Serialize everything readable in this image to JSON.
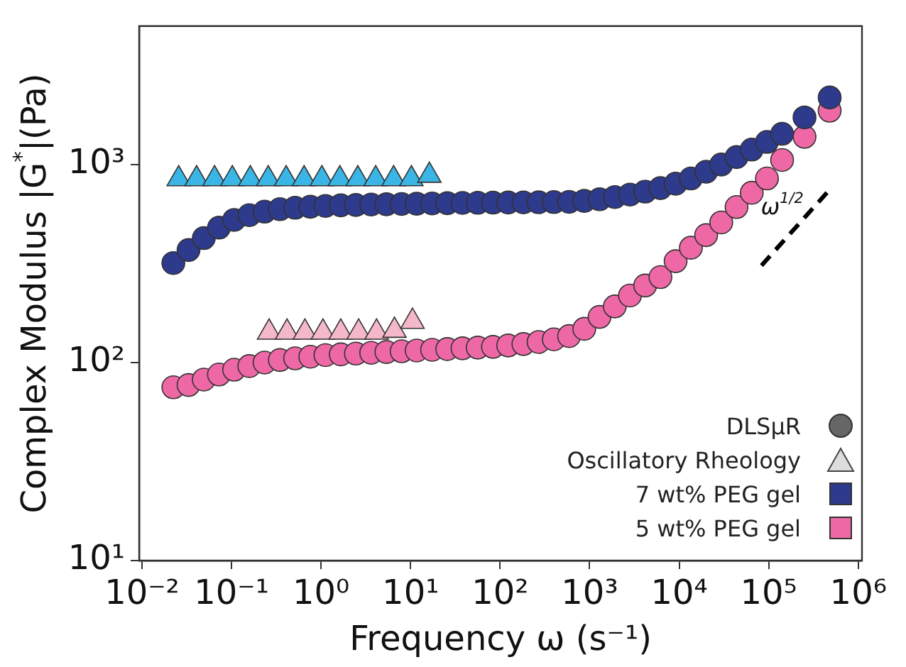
{
  "chart_data": {
    "type": "scatter",
    "xlabel": "Frequency ω (s⁻¹)",
    "ylabel": "Complex Modulus |G$^{*}$|(Pa)",
    "log": "xy",
    "grid": false,
    "legend": "bottom right",
    "xlim": [
      0.0093,
      1100000
    ],
    "ylim": [
      10,
      5000
    ],
    "xticks": [
      {
        "value": 0.01,
        "label": "10⁻²"
      },
      {
        "value": 0.1,
        "label": "10⁻¹"
      },
      {
        "value": 1,
        "label": "10⁰"
      },
      {
        "value": 10,
        "label": "10¹"
      },
      {
        "value": 100,
        "label": "10²"
      },
      {
        "value": 1000,
        "label": "10³"
      },
      {
        "value": 10000,
        "label": "10⁴"
      },
      {
        "value": 100000,
        "label": "10⁵"
      },
      {
        "value": 1000000,
        "label": "10⁶"
      }
    ],
    "yticks": [
      {
        "value": 10,
        "label": "10¹"
      },
      {
        "value": 100,
        "label": "10²"
      },
      {
        "value": 1000,
        "label": "10³"
      }
    ],
    "annotations": [
      "DLSμR",
      "Oscillatory Rheology",
      "ω$^{1/2}$"
    ],
    "series": [
      {
        "name": "7 wt% PEG gel",
        "marker": "circle",
        "color": "#2e3a8c",
        "x": [
          0.0224,
          0.0331,
          0.049,
          0.0724,
          0.107,
          0.158,
          0.234,
          0.347,
          0.513,
          0.759,
          1.12,
          1.66,
          2.45,
          3.63,
          5.37,
          7.94,
          11.7,
          17.4,
          25.7,
          38,
          56.2,
          83.2,
          123,
          182,
          269,
          398,
          589,
          871,
          1290,
          1910,
          2820,
          4170,
          6170,
          9120,
          13500,
          20000,
          29500,
          43700,
          64600,
          95500,
          141000,
          251000,
          479000
        ],
        "values": [
          318,
          370,
          425,
          480,
          525,
          555,
          578,
          595,
          605,
          612,
          618,
          622,
          625,
          628,
          630,
          632,
          634,
          636,
          638,
          640,
          641,
          642,
          643,
          644,
          645,
          646,
          648,
          655,
          668,
          685,
          705,
          730,
          760,
          800,
          850,
          920,
          1000,
          1090,
          1190,
          1300,
          1430,
          1730,
          2180
        ]
      },
      {
        "name": "5 wt% PEG gel",
        "marker": "circle",
        "color": "#ee68a6",
        "x": [
          0.0224,
          0.0331,
          0.049,
          0.0724,
          0.107,
          0.158,
          0.234,
          0.347,
          0.513,
          0.759,
          1.12,
          1.66,
          2.45,
          3.63,
          5.37,
          7.94,
          11.7,
          17.4,
          25.7,
          38,
          56.2,
          83.2,
          123,
          182,
          269,
          398,
          589,
          871,
          1290,
          1910,
          2820,
          4170,
          6170,
          9120,
          13500,
          20000,
          29500,
          43700,
          64600,
          95500,
          141000,
          251000,
          479000
        ],
        "values": [
          75,
          77,
          82,
          87,
          92,
          96,
          100,
          103,
          105,
          107,
          109,
          110,
          111,
          112,
          113,
          114,
          115,
          116,
          117,
          118,
          119,
          120,
          122,
          124,
          127,
          131,
          136,
          148,
          170,
          192,
          218,
          245,
          270,
          325,
          380,
          440,
          510,
          610,
          720,
          850,
          1054,
          1380,
          1870
        ]
      },
      {
        "marker": "triangle",
        "color": "#3bb5e5",
        "x": [
          0.0257,
          0.0407,
          0.0646,
          0.102,
          0.162,
          0.257,
          0.407,
          0.646,
          1.02,
          1.62,
          2.57,
          4.07,
          6.46,
          10.2,
          16.2
        ],
        "values": [
          845,
          845,
          845,
          845,
          845,
          845,
          845,
          845,
          845,
          845,
          845,
          845,
          845,
          845,
          880
        ]
      },
      {
        "marker": "triangle",
        "color": "#f4b8c8",
        "x": [
          0.263,
          0.417,
          0.661,
          1.05,
          1.66,
          2.63,
          4.17,
          6.61,
          10.5
        ],
        "values": [
          142,
          142,
          142,
          142,
          142,
          142,
          142,
          145,
          161
        ]
      },
      {
        "type": "line",
        "marker": "none",
        "line_style": "dashed",
        "color": "#000000",
        "x": [
          83000,
          500000
        ],
        "values": [
          309,
          763
        ]
      }
    ]
  }
}
